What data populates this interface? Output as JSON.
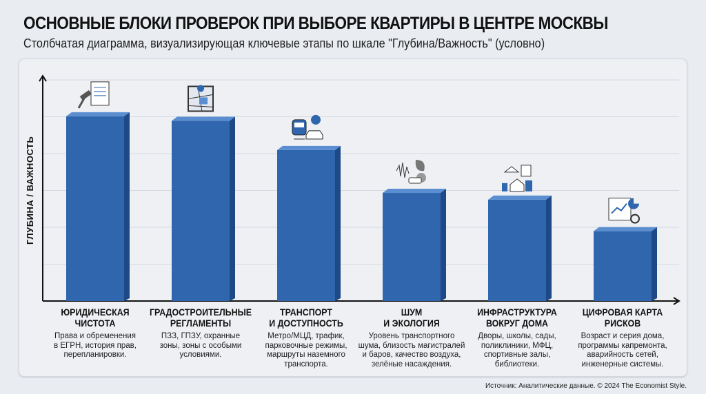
{
  "title": "ОСНОВНЫЕ БЛОКИ ПРОВЕРОК ПРИ ВЫБОРЕ КВАРТИРЫ В ЦЕНТРЕ МОСКВЫ",
  "subtitle": "Столбчатая диаграмма, визуализирующая ключевые этапы по шкале \"Глубина/Важность\" (условно)",
  "source": "Источник: Аналитические данные. © 2024 The Economist Style.",
  "colors": {
    "bar": "#2f66ad",
    "bar_top": "#5b8ed0",
    "bar_side": "#1d4a86"
  },
  "chart_data": {
    "type": "bar",
    "title": "ОСНОВНЫЕ БЛОКИ ПРОВЕРОК ПРИ ВЫБОРЕ КВАРТИРЫ В ЦЕНТРЕ МОСКВЫ",
    "ylabel": "ГЛУБИНА / ВАЖНОСТЬ",
    "xlabel": "",
    "ylim": [
      0,
      100
    ],
    "grid": true,
    "categories": [
      "ЮРИДИЧЕСКАЯ\nЧИСТОТА",
      "ГРАДОСТРОИТЕЛЬНЫЕ\nРЕГЛАМЕНТЫ",
      "ТРАНСПОРТ\nИ ДОСТУПНОСТЬ",
      "ШУМ\nИ ЭКОЛОГИЯ",
      "ИНФРАСТРУКТУРА\nВОКРУГ ДОМА",
      "ЦИФРОВАЯ КАРТА\nРИСКОВ"
    ],
    "descriptions": [
      "Права и обременения\nв ЕГРН, история прав,\nперепланировки.",
      "ПЗЗ, ГПЗУ, охранные\nзоны, зоны с особыми\nусловиями.",
      "Метро/МЦД, трафик,\nпарковочные режимы,\nмаршруты наземного\nтранспорта.",
      "Уровень транспортного\nшума, близость магистралей\nи баров, качество воздуха,\nзелёные насаждения.",
      "Дворы, школы, сады,\nполиклиники, МФЦ,\nспортивные залы,\nбиблиотеки.",
      "Возраст и серия дома,\nпрограммы капремонта,\nаварийность сетей,\nинженерные системы."
    ],
    "icons": [
      "legal-document-gavel-icon",
      "zoning-map-icon",
      "transport-train-car-icon",
      "noise-ecology-icon",
      "infrastructure-buildings-icon",
      "digital-risk-dashboard-icon"
    ],
    "values": [
      82,
      80,
      67,
      48,
      45,
      31
    ]
  }
}
